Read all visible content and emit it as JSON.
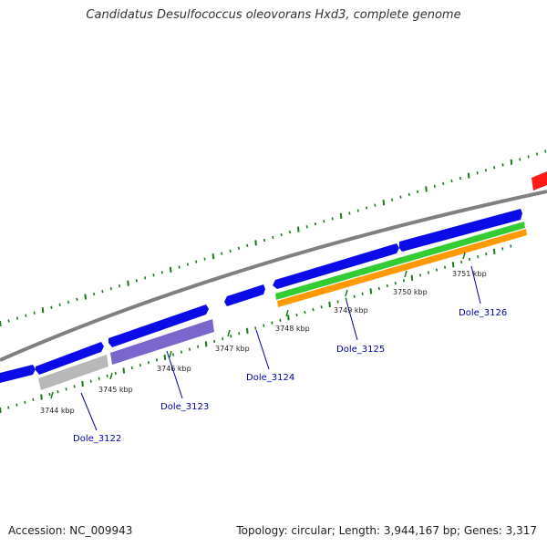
{
  "title": "Candidatus Desulfococcus oleovorans Hxd3, complete genome",
  "footer": {
    "accession": "Accession: NC_009943",
    "summary": "Topology: circular; Length: 3,944,167 bp; Genes: 3,317"
  },
  "colors": {
    "backbone": "#808080",
    "cds": "#0b0be8",
    "feature_gray": "#b8b8b8",
    "feature_purple": "#7a66cc",
    "feature_green": "#33cc33",
    "feature_orange": "#ff9900",
    "feature_red": "#ff1a1a",
    "ticks": "#1a7a1a",
    "gene_label": "#0000aa"
  },
  "kbp_labels": [
    "3744 kbp",
    "3745 kbp",
    "3746 kbp",
    "3747 kbp",
    "3748 kbp",
    "3749 kbp",
    "3750 kbp",
    "3751 kbp"
  ],
  "gene_labels": [
    "Dole_3122",
    "Dole_3123",
    "Dole_3124",
    "Dole_3125",
    "Dole_3126"
  ]
}
